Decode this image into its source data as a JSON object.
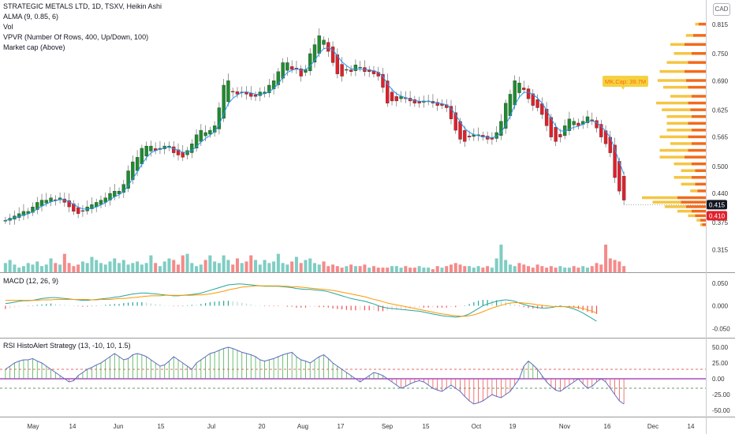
{
  "legend": {
    "title": "STRATEGIC METALS LTD, 1D, TSXV, Heikin Ashi",
    "alma": "ALMA (9, 0.85, 6)",
    "vol": "Vol",
    "vpvr": "VPVR (Number Of Rows, 400, Up/Down, 100)",
    "mcap": "Market cap (Above)",
    "currency": "CAD",
    "macd": "MACD (12, 26, 9)",
    "rsi": "RSI HistoAlert Strategy (13, -10, 10, 1.5)"
  },
  "annotation": {
    "mkcap": "MK.Cap: 39.7M"
  },
  "colors": {
    "up": "#26a69a",
    "candle_up": "#1e8c2f",
    "candle_down": "#e0202b",
    "vol_up": "#7fcdc3",
    "vol_down": "#f58a8a",
    "alma": "#2196f3",
    "macd": "#26a69a",
    "signal": "#ff9800",
    "vpvr_up": "#f5c542",
    "vpvr_down": "#f26a1b",
    "rsi_line": "#5c6bc0"
  },
  "chart_data": [
    {
      "type": "candlestick",
      "title": "STRATEGIC METALS LTD, 1D, TSXV, Heikin Ashi",
      "x_tick_labels": [
        "May",
        "14",
        "Jun",
        "15",
        "Jul",
        "20",
        "Aug",
        "17",
        "Sep",
        "15",
        "Oct",
        "19",
        "Nov",
        "16",
        "Dec",
        "14"
      ],
      "y_tick_labels": [
        "0.815",
        "0.750",
        "0.690",
        "0.625",
        "0.565",
        "0.500",
        "0.440",
        "0.375",
        "0.315"
      ],
      "ylim": [
        0.3,
        0.82
      ],
      "last_price": "0.415",
      "last_close_label": "0.410",
      "closes": [
        0.38,
        0.385,
        0.39,
        0.395,
        0.4,
        0.4,
        0.41,
        0.42,
        0.425,
        0.425,
        0.43,
        0.425,
        0.43,
        0.42,
        0.41,
        0.4,
        0.395,
        0.4,
        0.41,
        0.415,
        0.42,
        0.425,
        0.43,
        0.44,
        0.445,
        0.445,
        0.46,
        0.49,
        0.51,
        0.52,
        0.54,
        0.545,
        0.545,
        0.535,
        0.54,
        0.545,
        0.545,
        0.53,
        0.525,
        0.52,
        0.535,
        0.55,
        0.57,
        0.58,
        0.575,
        0.58,
        0.59,
        0.63,
        0.68,
        0.69,
        0.665,
        0.66,
        0.665,
        0.66,
        0.655,
        0.655,
        0.665,
        0.665,
        0.68,
        0.69,
        0.71,
        0.73,
        0.73,
        0.715,
        0.715,
        0.7,
        0.715,
        0.75,
        0.77,
        0.79,
        0.78,
        0.755,
        0.73,
        0.705,
        0.7,
        0.715,
        0.71,
        0.725,
        0.72,
        0.71,
        0.71,
        0.705,
        0.7,
        0.675,
        0.64,
        0.645,
        0.645,
        0.655,
        0.65,
        0.645,
        0.64,
        0.64,
        0.645,
        0.645,
        0.64,
        0.635,
        0.635,
        0.63,
        0.605,
        0.58,
        0.56,
        0.555,
        0.565,
        0.57,
        0.57,
        0.565,
        0.56,
        0.56,
        0.575,
        0.6,
        0.64,
        0.66,
        0.69,
        0.685,
        0.67,
        0.65,
        0.635,
        0.63,
        0.615,
        0.59,
        0.565,
        0.555,
        0.565,
        0.59,
        0.605,
        0.6,
        0.59,
        0.6,
        0.61,
        0.6,
        0.585,
        0.565,
        0.55,
        0.53,
        0.475,
        0.445,
        0.425
      ],
      "volumes": [
        30,
        40,
        25,
        15,
        20,
        30,
        25,
        35,
        20,
        25,
        45,
        30,
        25,
        60,
        30,
        20,
        25,
        35,
        30,
        50,
        40,
        30,
        25,
        35,
        45,
        30,
        40,
        25,
        30,
        35,
        25,
        30,
        55,
        30,
        20,
        35,
        45,
        40,
        25,
        55,
        60,
        30,
        20,
        25,
        40,
        55,
        35,
        30,
        55,
        40,
        25,
        45,
        30,
        35,
        55,
        40,
        25,
        40,
        30,
        35,
        60,
        30,
        25,
        35,
        50,
        30,
        40,
        45,
        30,
        25,
        35,
        20,
        25,
        20,
        15,
        20,
        25,
        20,
        20,
        25,
        15,
        20,
        15,
        15,
        15,
        20,
        20,
        15,
        20,
        15,
        15,
        20,
        15,
        15,
        10,
        20,
        15,
        20,
        25,
        30,
        25,
        20,
        20,
        15,
        20,
        15,
        20,
        15,
        45,
        90,
        40,
        25,
        20,
        30,
        25,
        20,
        15,
        25,
        20,
        15,
        20,
        15,
        20,
        15,
        15,
        20,
        15,
        20,
        15,
        20,
        30,
        25,
        90,
        45,
        40,
        35,
        20
      ],
      "vpvr_profile": [
        {
          "price": 0.815,
          "up": 5,
          "down": 10
        },
        {
          "price": 0.79,
          "up": 10,
          "down": 18
        },
        {
          "price": 0.77,
          "up": 20,
          "down": 30
        },
        {
          "price": 0.75,
          "up": 25,
          "down": 20
        },
        {
          "price": 0.73,
          "up": 30,
          "down": 25
        },
        {
          "price": 0.71,
          "up": 35,
          "down": 30
        },
        {
          "price": 0.69,
          "up": 40,
          "down": 28
        },
        {
          "price": 0.675,
          "up": 35,
          "down": 25
        },
        {
          "price": 0.655,
          "up": 30,
          "down": 20
        },
        {
          "price": 0.64,
          "up": 45,
          "down": 25
        },
        {
          "price": 0.625,
          "up": 40,
          "down": 22
        },
        {
          "price": 0.61,
          "up": 35,
          "down": 20
        },
        {
          "price": 0.595,
          "up": 30,
          "down": 25
        },
        {
          "price": 0.58,
          "up": 35,
          "down": 20
        },
        {
          "price": 0.565,
          "up": 40,
          "down": 25
        },
        {
          "price": 0.55,
          "up": 30,
          "down": 20
        },
        {
          "price": 0.535,
          "up": 40,
          "down": 25
        },
        {
          "price": 0.52,
          "up": 35,
          "down": 30
        },
        {
          "price": 0.505,
          "up": 25,
          "down": 20
        },
        {
          "price": 0.49,
          "up": 20,
          "down": 15
        },
        {
          "price": 0.475,
          "up": 25,
          "down": 20
        },
        {
          "price": 0.46,
          "up": 20,
          "down": 15
        },
        {
          "price": 0.445,
          "up": 10,
          "down": 12
        },
        {
          "price": 0.43,
          "up": 50,
          "down": 40
        },
        {
          "price": 0.42,
          "up": 40,
          "down": 35
        },
        {
          "price": 0.41,
          "up": 30,
          "down": 28
        },
        {
          "price": 0.4,
          "up": 20,
          "down": 20
        },
        {
          "price": 0.39,
          "up": 10,
          "down": 15
        },
        {
          "price": 0.38,
          "up": 5,
          "down": 8
        },
        {
          "price": 0.37,
          "up": 3,
          "down": 5
        }
      ]
    },
    {
      "type": "line",
      "title": "MACD (12, 26, 9)",
      "y_tick_labels": [
        "0.050",
        "0.000",
        "-0.050"
      ],
      "ylim": [
        -0.06,
        0.06
      ],
      "series": [
        {
          "values": [
            0.005,
            0.006,
            0.008,
            0.01,
            0.011,
            0.011,
            0.012,
            0.014,
            0.016,
            0.017,
            0.018,
            0.018,
            0.017,
            0.016,
            0.015,
            0.014,
            0.013,
            0.012,
            0.012,
            0.013,
            0.014,
            0.015,
            0.016,
            0.017,
            0.019,
            0.02,
            0.022,
            0.024,
            0.026,
            0.027,
            0.028,
            0.028,
            0.027,
            0.026,
            0.025,
            0.024,
            0.023,
            0.022,
            0.022,
            0.023,
            0.024,
            0.025,
            0.026,
            0.028,
            0.031,
            0.034,
            0.037,
            0.04,
            0.043,
            0.046,
            0.047,
            0.048,
            0.048,
            0.047,
            0.046,
            0.045,
            0.044,
            0.043,
            0.043,
            0.043,
            0.043,
            0.042,
            0.041,
            0.04,
            0.038,
            0.037,
            0.036,
            0.036,
            0.035,
            0.034,
            0.033,
            0.031,
            0.028,
            0.025,
            0.022,
            0.019,
            0.016,
            0.014,
            0.012,
            0.01,
            0.007,
            0.004,
            0.0,
            -0.003,
            -0.005,
            -0.006,
            -0.007,
            -0.008,
            -0.009,
            -0.01,
            -0.011,
            -0.012,
            -0.014,
            -0.016,
            -0.018,
            -0.02,
            -0.022,
            -0.023,
            -0.024,
            -0.025,
            -0.024,
            -0.022,
            -0.018,
            -0.012,
            -0.006,
            0.0,
            0.004,
            0.007,
            0.01,
            0.012,
            0.013,
            0.012,
            0.01,
            0.006,
            0.003,
            0.0,
            -0.002,
            -0.004,
            -0.005,
            -0.005,
            -0.004,
            -0.002,
            -0.001,
            -0.002,
            -0.004,
            -0.007,
            -0.011,
            -0.016,
            -0.022,
            -0.028,
            -0.034
          ]
        },
        {
          "values": [
            0.012,
            0.012,
            0.012,
            0.012,
            0.012,
            0.012,
            0.012,
            0.012,
            0.013,
            0.013,
            0.013,
            0.014,
            0.014,
            0.014,
            0.014,
            0.014,
            0.014,
            0.014,
            0.014,
            0.013,
            0.013,
            0.014,
            0.014,
            0.014,
            0.015,
            0.016,
            0.016,
            0.017,
            0.018,
            0.019,
            0.02,
            0.021,
            0.022,
            0.022,
            0.022,
            0.023,
            0.023,
            0.023,
            0.023,
            0.023,
            0.023,
            0.023,
            0.024,
            0.024,
            0.025,
            0.026,
            0.028,
            0.03,
            0.032,
            0.035,
            0.037,
            0.039,
            0.041,
            0.042,
            0.043,
            0.044,
            0.044,
            0.044,
            0.044,
            0.044,
            0.044,
            0.043,
            0.043,
            0.042,
            0.042,
            0.041,
            0.04,
            0.039,
            0.038,
            0.037,
            0.036,
            0.035,
            0.034,
            0.032,
            0.03,
            0.028,
            0.026,
            0.024,
            0.022,
            0.02,
            0.017,
            0.014,
            0.012,
            0.009,
            0.006,
            0.004,
            0.002,
            0.0,
            -0.002,
            -0.004,
            -0.006,
            -0.008,
            -0.01,
            -0.012,
            -0.014,
            -0.016,
            -0.018,
            -0.019,
            -0.021,
            -0.022,
            -0.023,
            -0.023,
            -0.022,
            -0.02,
            -0.017,
            -0.013,
            -0.009,
            -0.005,
            -0.002,
            0.001,
            0.004,
            0.006,
            0.007,
            0.007,
            0.006,
            0.005,
            0.004,
            0.002,
            0.001,
            0.0,
            -0.001,
            -0.002,
            -0.002,
            -0.002,
            -0.002,
            -0.003,
            -0.004,
            -0.006,
            -0.009,
            -0.012,
            -0.016
          ]
        }
      ]
    },
    {
      "type": "bar",
      "title": "RSI HistoAlert Strategy (13, -10, 10, 1.5)",
      "y_tick_labels": [
        "50.00",
        "25.00",
        "0.00",
        "-25.00",
        "-50.00"
      ],
      "ylim": [
        -55,
        55
      ],
      "values": [
        15,
        20,
        25,
        28,
        30,
        30,
        32,
        28,
        25,
        20,
        15,
        10,
        5,
        0,
        -5,
        -3,
        5,
        10,
        15,
        18,
        22,
        25,
        30,
        35,
        40,
        35,
        30,
        32,
        38,
        40,
        38,
        35,
        30,
        25,
        20,
        22,
        28,
        35,
        30,
        25,
        20,
        15,
        25,
        30,
        35,
        40,
        42,
        45,
        48,
        50,
        48,
        45,
        42,
        40,
        38,
        35,
        30,
        28,
        30,
        32,
        35,
        38,
        40,
        42,
        35,
        30,
        28,
        25,
        30,
        35,
        38,
        32,
        25,
        20,
        15,
        10,
        5,
        0,
        -5,
        0,
        5,
        10,
        8,
        5,
        0,
        -5,
        -10,
        -15,
        -12,
        -8,
        -5,
        -3,
        -5,
        -10,
        -15,
        -18,
        -20,
        -15,
        -10,
        -15,
        -20,
        -28,
        -35,
        -40,
        -38,
        -35,
        -30,
        -25,
        -28,
        -30,
        -25,
        -20,
        -10,
        0,
        20,
        28,
        22,
        15,
        5,
        -5,
        -12,
        -18,
        -20,
        -15,
        -10,
        -5,
        0,
        -8,
        -15,
        -12,
        -5,
        0,
        -5,
        -15,
        -25,
        -35,
        -40,
        -42,
        -38
      ]
    }
  ]
}
